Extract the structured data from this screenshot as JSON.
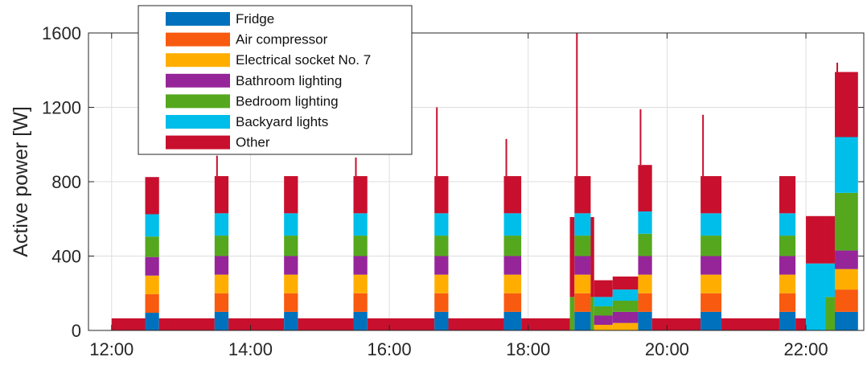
{
  "chart_data": {
    "type": "area",
    "title": "",
    "xlabel": "",
    "ylabel": "Active power [W]",
    "xlim": [
      "11:40",
      "22:50"
    ],
    "ylim": [
      0,
      1600
    ],
    "xticks": [
      "12:00",
      "14:00",
      "16:00",
      "18:00",
      "20:00",
      "22:00"
    ],
    "yticks": [
      0,
      400,
      800,
      1200,
      1600
    ],
    "grid": true,
    "legend_position": "top-left",
    "stacking_order": [
      "Fridge",
      "Air compressor",
      "Electrical socket No. 7",
      "Bathroom lighting",
      "Bedroom lighting",
      "Backyard lights",
      "Other"
    ],
    "series": [
      {
        "name": "Fridge",
        "color": "#0072BD"
      },
      {
        "name": "Air compressor",
        "color": "#F85A0F"
      },
      {
        "name": "Electrical socket No. 7",
        "color": "#FFAE00"
      },
      {
        "name": "Bathroom lighting",
        "color": "#96259A"
      },
      {
        "name": "Bedroom lighting",
        "color": "#55A81E"
      },
      {
        "name": "Backyard lights",
        "color": "#00BEEA"
      },
      {
        "name": "Other",
        "color": "#C8102E"
      }
    ],
    "segments": [
      {
        "start": "12:00",
        "end": "12:29",
        "layers": [
          0,
          0,
          0,
          0,
          0,
          0,
          65
        ]
      },
      {
        "start": "12:29",
        "end": "12:41",
        "layers": [
          95,
          100,
          100,
          100,
          110,
          120,
          200
        ],
        "peak": 810
      },
      {
        "start": "12:41",
        "end": "13:29",
        "layers": [
          0,
          0,
          0,
          0,
          0,
          0,
          65
        ]
      },
      {
        "start": "13:29",
        "end": "13:41",
        "layers": [
          100,
          100,
          100,
          100,
          110,
          120,
          200
        ],
        "peak": 940
      },
      {
        "start": "13:41",
        "end": "14:29",
        "layers": [
          0,
          0,
          0,
          0,
          0,
          0,
          65
        ]
      },
      {
        "start": "14:29",
        "end": "14:41",
        "layers": [
          100,
          100,
          100,
          100,
          110,
          120,
          200
        ],
        "peak": 800
      },
      {
        "start": "14:41",
        "end": "15:29",
        "layers": [
          0,
          0,
          0,
          0,
          0,
          0,
          65
        ]
      },
      {
        "start": "15:29",
        "end": "15:41",
        "layers": [
          100,
          100,
          100,
          100,
          110,
          120,
          200
        ],
        "peak": 930
      },
      {
        "start": "15:41",
        "end": "16:39",
        "layers": [
          0,
          0,
          0,
          0,
          0,
          0,
          65
        ]
      },
      {
        "start": "16:39",
        "end": "16:51",
        "layers": [
          100,
          100,
          100,
          100,
          110,
          120,
          200
        ],
        "peak": 1200
      },
      {
        "start": "16:51",
        "end": "17:39",
        "layers": [
          0,
          0,
          0,
          0,
          0,
          0,
          65
        ]
      },
      {
        "start": "17:39",
        "end": "17:54",
        "layers": [
          100,
          100,
          100,
          100,
          110,
          120,
          200
        ],
        "peak": 1030
      },
      {
        "start": "17:54",
        "end": "18:36",
        "layers": [
          0,
          0,
          0,
          0,
          0,
          0,
          65
        ]
      },
      {
        "start": "18:36",
        "end": "18:40",
        "layers": [
          0,
          0,
          0,
          0,
          180,
          0,
          430
        ]
      },
      {
        "start": "18:40",
        "end": "18:54",
        "layers": [
          100,
          100,
          100,
          100,
          110,
          120,
          200
        ],
        "peak": 1600
      },
      {
        "start": "18:54",
        "end": "18:57",
        "layers": [
          0,
          0,
          0,
          0,
          180,
          0,
          430
        ]
      },
      {
        "start": "18:57",
        "end": "19:13",
        "layers": [
          0,
          0,
          30,
          50,
          50,
          50,
          90
        ]
      },
      {
        "start": "19:13",
        "end": "19:35",
        "layers": [
          0,
          0,
          40,
          60,
          60,
          60,
          70
        ]
      },
      {
        "start": "19:35",
        "end": "19:47",
        "layers": [
          100,
          100,
          100,
          100,
          120,
          120,
          250
        ],
        "peak": 1190
      },
      {
        "start": "19:47",
        "end": "20:29",
        "layers": [
          0,
          0,
          0,
          0,
          0,
          0,
          65
        ]
      },
      {
        "start": "20:29",
        "end": "20:47",
        "layers": [
          100,
          100,
          100,
          100,
          110,
          120,
          200
        ],
        "peak": 1160
      },
      {
        "start": "20:47",
        "end": "21:37",
        "layers": [
          0,
          0,
          0,
          0,
          0,
          0,
          65
        ]
      },
      {
        "start": "21:37",
        "end": "21:51",
        "layers": [
          100,
          100,
          100,
          100,
          110,
          120,
          200
        ],
        "peak": 790
      },
      {
        "start": "21:51",
        "end": "22:00",
        "layers": [
          0,
          0,
          0,
          0,
          0,
          0,
          65
        ]
      },
      {
        "start": "22:00",
        "end": "22:17",
        "layers": [
          0,
          0,
          0,
          0,
          0,
          360,
          255
        ]
      },
      {
        "start": "22:17",
        "end": "22:25",
        "layers": [
          0,
          0,
          0,
          0,
          180,
          180,
          255
        ]
      },
      {
        "start": "22:25",
        "end": "22:45",
        "layers": [
          100,
          120,
          110,
          100,
          310,
          300,
          350
        ],
        "peak": 1440
      }
    ]
  }
}
